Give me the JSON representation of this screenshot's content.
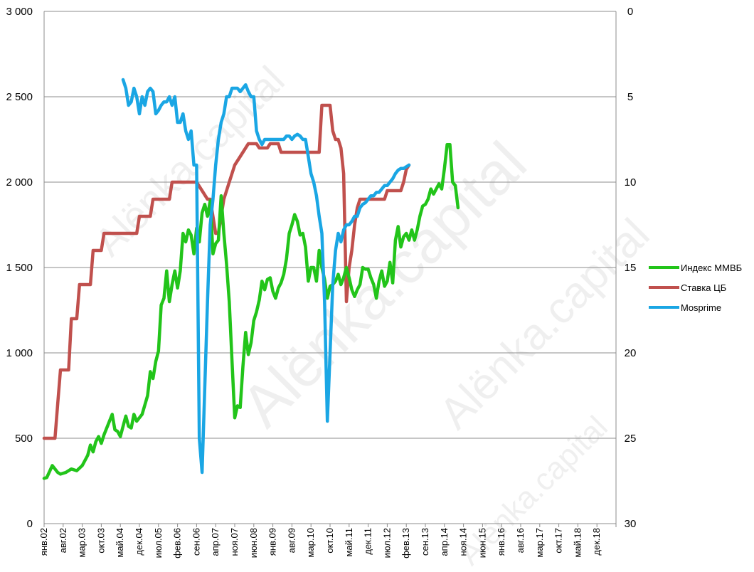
{
  "chart_data": {
    "type": "line",
    "title": "",
    "xlabel": "",
    "ylabel": "",
    "y_left": {
      "ticks": [
        "0",
        "500",
        "1 000",
        "1 500",
        "2 000",
        "2 500",
        "3 000"
      ],
      "min": 0,
      "max": 3000
    },
    "y_right": {
      "ticks": [
        "0",
        "5",
        "10",
        "15",
        "20",
        "25",
        "30"
      ],
      "min": 0,
      "max": 30,
      "inverted": true
    },
    "x_ticks": [
      "янв.02",
      "авг.02",
      "мар.03",
      "окт.03",
      "май.04",
      "дек.04",
      "июл.05",
      "фев.06",
      "сен.06",
      "апр.07",
      "ноя.07",
      "июн.08",
      "янв.09",
      "авг.09",
      "мар.10",
      "окт.10",
      "май.11",
      "дек.11",
      "июл.12",
      "фев.13",
      "сен.13",
      "апр.14",
      "ноя.14",
      "июн.15",
      "янв.16",
      "авг.16",
      "мар.17",
      "окт.17",
      "май.18",
      "дек.18"
    ],
    "grid": true,
    "legend_position": "right",
    "series": [
      {
        "name": "Индекс ММВБ",
        "axis": "left",
        "color": "#22c41a",
        "points": [
          [
            0,
            265
          ],
          [
            1,
            270
          ],
          [
            3,
            340
          ],
          [
            5,
            300
          ],
          [
            6,
            290
          ],
          [
            8,
            300
          ],
          [
            10,
            320
          ],
          [
            12,
            310
          ],
          [
            14,
            340
          ],
          [
            16,
            400
          ],
          [
            17,
            460
          ],
          [
            18,
            420
          ],
          [
            19,
            480
          ],
          [
            20,
            510
          ],
          [
            21,
            470
          ],
          [
            22,
            520
          ],
          [
            24,
            600
          ],
          [
            25,
            640
          ],
          [
            26,
            550
          ],
          [
            27,
            540
          ],
          [
            28,
            510
          ],
          [
            29,
            570
          ],
          [
            30,
            630
          ],
          [
            31,
            570
          ],
          [
            32,
            560
          ],
          [
            33,
            640
          ],
          [
            34,
            600
          ],
          [
            36,
            640
          ],
          [
            38,
            750
          ],
          [
            39,
            890
          ],
          [
            40,
            850
          ],
          [
            41,
            950
          ],
          [
            42,
            1010
          ],
          [
            43,
            1280
          ],
          [
            44,
            1320
          ],
          [
            45,
            1480
          ],
          [
            46,
            1300
          ],
          [
            47,
            1400
          ],
          [
            48,
            1480
          ],
          [
            49,
            1380
          ],
          [
            50,
            1480
          ],
          [
            51,
            1700
          ],
          [
            52,
            1650
          ],
          [
            53,
            1720
          ],
          [
            54,
            1690
          ],
          [
            55,
            1580
          ],
          [
            56,
            1730
          ],
          [
            57,
            1650
          ],
          [
            58,
            1820
          ],
          [
            59,
            1870
          ],
          [
            60,
            1800
          ],
          [
            61,
            1890
          ],
          [
            62,
            1580
          ],
          [
            63,
            1640
          ],
          [
            64,
            1660
          ],
          [
            65,
            1920
          ],
          [
            66,
            1700
          ],
          [
            67,
            1520
          ],
          [
            68,
            1300
          ],
          [
            69,
            950
          ],
          [
            70,
            620
          ],
          [
            71,
            690
          ],
          [
            72,
            680
          ],
          [
            73,
            920
          ],
          [
            74,
            1120
          ],
          [
            75,
            990
          ],
          [
            76,
            1060
          ],
          [
            77,
            1190
          ],
          [
            78,
            1240
          ],
          [
            79,
            1310
          ],
          [
            80,
            1420
          ],
          [
            81,
            1370
          ],
          [
            82,
            1430
          ],
          [
            83,
            1440
          ],
          [
            84,
            1360
          ],
          [
            85,
            1320
          ],
          [
            86,
            1380
          ],
          [
            87,
            1410
          ],
          [
            88,
            1460
          ],
          [
            89,
            1550
          ],
          [
            90,
            1700
          ],
          [
            91,
            1750
          ],
          [
            92,
            1810
          ],
          [
            93,
            1770
          ],
          [
            94,
            1690
          ],
          [
            95,
            1700
          ],
          [
            96,
            1620
          ],
          [
            97,
            1420
          ],
          [
            98,
            1500
          ],
          [
            99,
            1500
          ],
          [
            100,
            1420
          ],
          [
            101,
            1600
          ],
          [
            102,
            1500
          ],
          [
            103,
            1430
          ],
          [
            104,
            1320
          ],
          [
            105,
            1390
          ],
          [
            106,
            1400
          ],
          [
            107,
            1420
          ],
          [
            108,
            1460
          ],
          [
            109,
            1400
          ],
          [
            110,
            1440
          ],
          [
            111,
            1500
          ],
          [
            112,
            1440
          ],
          [
            113,
            1370
          ],
          [
            114,
            1330
          ],
          [
            115,
            1370
          ],
          [
            116,
            1400
          ],
          [
            117,
            1500
          ],
          [
            118,
            1490
          ],
          [
            119,
            1490
          ],
          [
            120,
            1440
          ],
          [
            121,
            1400
          ],
          [
            122,
            1320
          ],
          [
            123,
            1420
          ],
          [
            124,
            1480
          ],
          [
            125,
            1390
          ],
          [
            126,
            1420
          ],
          [
            127,
            1530
          ],
          [
            128,
            1410
          ],
          [
            129,
            1660
          ],
          [
            130,
            1740
          ],
          [
            131,
            1620
          ],
          [
            132,
            1680
          ],
          [
            133,
            1700
          ],
          [
            134,
            1660
          ],
          [
            135,
            1720
          ],
          [
            136,
            1660
          ],
          [
            137,
            1720
          ],
          [
            138,
            1800
          ],
          [
            139,
            1860
          ],
          [
            140,
            1870
          ],
          [
            141,
            1900
          ],
          [
            142,
            1960
          ],
          [
            143,
            1930
          ],
          [
            144,
            1960
          ],
          [
            145,
            1990
          ],
          [
            146,
            1960
          ],
          [
            147,
            2080
          ],
          [
            148,
            2220
          ],
          [
            149,
            2220
          ],
          [
            150,
            2000
          ],
          [
            151,
            1980
          ],
          [
            152,
            1850
          ]
        ]
      },
      {
        "name": "Ставка ЦБ",
        "axis": "right",
        "color": "#c0504d",
        "points": [
          [
            0,
            25
          ],
          [
            4,
            25
          ],
          [
            5,
            23
          ],
          [
            6,
            21
          ],
          [
            9,
            21
          ],
          [
            10,
            18
          ],
          [
            12,
            18
          ],
          [
            13,
            16
          ],
          [
            17,
            16
          ],
          [
            18,
            14
          ],
          [
            21,
            14
          ],
          [
            22,
            13
          ],
          [
            34,
            13
          ],
          [
            35,
            12
          ],
          [
            39,
            12
          ],
          [
            40,
            11
          ],
          [
            46,
            11
          ],
          [
            47,
            10
          ],
          [
            56,
            10
          ],
          [
            58,
            10.5
          ],
          [
            60,
            11
          ],
          [
            61,
            11
          ],
          [
            63,
            13
          ],
          [
            64,
            13
          ],
          [
            65,
            12
          ],
          [
            66,
            11
          ],
          [
            68,
            10
          ],
          [
            70,
            9
          ],
          [
            72,
            8.5
          ],
          [
            74,
            8
          ],
          [
            75,
            7.75
          ],
          [
            78,
            7.75
          ],
          [
            79,
            8
          ],
          [
            82,
            8
          ],
          [
            83,
            7.75
          ],
          [
            86,
            7.75
          ],
          [
            87,
            8.25
          ],
          [
            101,
            8.25
          ],
          [
            102,
            5.5
          ],
          [
            105,
            5.5
          ],
          [
            106,
            7
          ],
          [
            107,
            7.5
          ],
          [
            108,
            7.5
          ],
          [
            109,
            8
          ],
          [
            110,
            9.5
          ],
          [
            111,
            17
          ],
          [
            112,
            15
          ],
          [
            113,
            14
          ],
          [
            114,
            12.5
          ],
          [
            115,
            11.5
          ],
          [
            116,
            11
          ],
          [
            117,
            11
          ],
          [
            125,
            11
          ],
          [
            126,
            10.5
          ],
          [
            131,
            10.5
          ],
          [
            132,
            10
          ],
          [
            133,
            9.25
          ],
          [
            134,
            9
          ]
        ]
      },
      {
        "name": "Mosprime",
        "axis": "right",
        "color": "#1aa6e4",
        "points": [
          [
            29,
            4
          ],
          [
            30,
            4.5
          ],
          [
            31,
            5.5
          ],
          [
            32,
            5.3
          ],
          [
            33,
            4.5
          ],
          [
            34,
            5
          ],
          [
            35,
            6
          ],
          [
            36,
            5
          ],
          [
            37,
            5.5
          ],
          [
            38,
            4.7
          ],
          [
            39,
            4.5
          ],
          [
            40,
            4.7
          ],
          [
            41,
            6
          ],
          [
            42,
            5.8
          ],
          [
            43,
            5.5
          ],
          [
            44,
            5.3
          ],
          [
            45,
            5.3
          ],
          [
            46,
            5
          ],
          [
            47,
            5.5
          ],
          [
            48,
            5
          ],
          [
            49,
            6.5
          ],
          [
            50,
            6.5
          ],
          [
            51,
            6
          ],
          [
            52,
            7
          ],
          [
            53,
            7.5
          ],
          [
            54,
            7
          ],
          [
            55,
            9
          ],
          [
            56,
            9
          ],
          [
            57,
            25
          ],
          [
            58,
            27
          ],
          [
            59,
            22
          ],
          [
            60,
            17
          ],
          [
            61,
            12.5
          ],
          [
            62,
            11
          ],
          [
            63,
            9
          ],
          [
            64,
            7.5
          ],
          [
            65,
            6.5
          ],
          [
            66,
            6
          ],
          [
            67,
            5
          ],
          [
            68,
            5
          ],
          [
            69,
            4.5
          ],
          [
            70,
            4.5
          ],
          [
            71,
            4.5
          ],
          [
            72,
            4.7
          ],
          [
            73,
            4.5
          ],
          [
            74,
            4.3
          ],
          [
            75,
            4.7
          ],
          [
            76,
            5
          ],
          [
            77,
            5
          ],
          [
            78,
            7
          ],
          [
            79,
            7.5
          ],
          [
            80,
            7.8
          ],
          [
            81,
            7.5
          ],
          [
            82,
            7.5
          ],
          [
            83,
            7.5
          ],
          [
            84,
            7.5
          ],
          [
            85,
            7.5
          ],
          [
            86,
            7.5
          ],
          [
            87,
            7.5
          ],
          [
            88,
            7.5
          ],
          [
            89,
            7.3
          ],
          [
            90,
            7.3
          ],
          [
            91,
            7.5
          ],
          [
            92,
            7.3
          ],
          [
            93,
            7.2
          ],
          [
            94,
            7.3
          ],
          [
            95,
            7.5
          ],
          [
            96,
            7.5
          ],
          [
            97,
            8.5
          ],
          [
            98,
            9.5
          ],
          [
            99,
            10
          ],
          [
            100,
            10.8
          ],
          [
            101,
            12
          ],
          [
            102,
            13
          ],
          [
            103,
            17
          ],
          [
            104,
            24
          ],
          [
            105,
            20
          ],
          [
            106,
            16
          ],
          [
            107,
            14
          ],
          [
            108,
            13
          ],
          [
            109,
            13.5
          ],
          [
            110,
            12.8
          ],
          [
            111,
            12.5
          ],
          [
            112,
            12.5
          ],
          [
            113,
            12.3
          ],
          [
            114,
            12
          ],
          [
            115,
            12
          ],
          [
            116,
            11.5
          ],
          [
            117,
            11.3
          ],
          [
            118,
            11.2
          ],
          [
            119,
            11
          ],
          [
            120,
            10.8
          ],
          [
            121,
            10.8
          ],
          [
            122,
            10.6
          ],
          [
            123,
            10.6
          ],
          [
            124,
            10.4
          ],
          [
            125,
            10.2
          ],
          [
            126,
            10.2
          ],
          [
            127,
            10
          ],
          [
            128,
            9.8
          ],
          [
            129,
            9.5
          ],
          [
            130,
            9.3
          ],
          [
            131,
            9.2
          ],
          [
            132,
            9.2
          ],
          [
            133,
            9.1
          ],
          [
            134,
            9
          ]
        ]
      }
    ]
  },
  "watermark": "Alënka.capital"
}
